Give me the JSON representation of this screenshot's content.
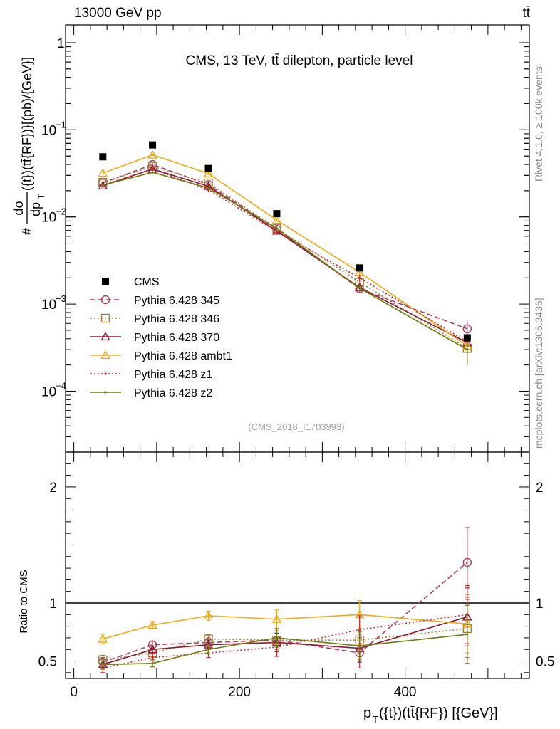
{
  "header": {
    "energy_label": "13000 GeV pp",
    "process_label": "tt̄"
  },
  "side_labels": {
    "rivet": "Rivet 4.1.0, ≥ 100k events",
    "mcplots": "mcplots.cern.ch [arXiv:1306.3436]"
  },
  "chart_data": [
    {
      "type": "line",
      "panel": "main",
      "title": "CMS, 13 TeV, tt̄ dilepton, particle level",
      "analysis_tag": "(CMS_2018_I1703993)",
      "ylabel": "#dσ/dp_T({t})(tt̄{RF})}[(pb)/{GeV}]",
      "ylabel_parts": {
        "hash": "#",
        "num": "dσ",
        "den": "dp",
        "den_sub": "T",
        "rest": "({t})(tt̄{RF})}[(pb)/{GeV}]"
      },
      "yscale": "log",
      "ylim": [
        2e-05,
        1.6
      ],
      "xlim": [
        -10,
        550
      ],
      "y_tick_labels": [
        {
          "value": 1,
          "base": "1",
          "exp": ""
        },
        {
          "value": 0.1,
          "base": "10",
          "exp": "−1"
        },
        {
          "value": 0.01,
          "base": "10",
          "exp": "−2"
        },
        {
          "value": 0.001,
          "base": "10",
          "exp": "−3"
        },
        {
          "value": 0.0001,
          "base": "10",
          "exp": "−4"
        }
      ],
      "x": [
        35,
        95,
        162.5,
        245,
        345,
        475
      ],
      "data": {
        "name": "CMS",
        "color": "#000000",
        "values": [
          0.049,
          0.067,
          0.036,
          0.0109,
          0.0026,
          0.00041
        ]
      },
      "series": [
        {
          "name": "Pythia 6.428 345",
          "color": "#b03a5a",
          "values": [
            0.0245,
            0.04,
            0.0235,
            0.0072,
            0.0015,
            0.00052
          ],
          "errors": [
            0.001,
            0.0015,
            0.001,
            0.0004,
            0.00015,
            0.00012
          ]
        },
        {
          "name": "Pythia 6.428 346",
          "color": "#a08040",
          "values": [
            0.025,
            0.038,
            0.0245,
            0.0074,
            0.00178,
            0.00031
          ],
          "errors": [
            0.001,
            0.0015,
            0.001,
            0.0004,
            0.00018,
            0.0001
          ]
        },
        {
          "name": "Pythia 6.428 370",
          "color": "#8b1a2f",
          "values": [
            0.0228,
            0.0355,
            0.0225,
            0.0069,
            0.00155,
            0.00036
          ],
          "errors": [
            0.001,
            0.0015,
            0.001,
            0.0004,
            0.00015,
            0.0001
          ]
        },
        {
          "name": "Pythia 6.428 ambt1",
          "color": "#f0a818",
          "values": [
            0.0318,
            0.0515,
            0.0315,
            0.0092,
            0.00232,
            0.00033
          ],
          "errors": [
            0.001,
            0.0015,
            0.001,
            0.0004,
            0.0002,
            0.0001
          ]
        },
        {
          "name": "Pythia 6.428 z1",
          "color": "#d0202a",
          "values": [
            0.0232,
            0.0355,
            0.0205,
            0.0068,
            0.002,
            0.00037
          ],
          "errors": [
            0.001,
            0.0015,
            0.001,
            0.0004,
            0.00018,
            0.0001
          ]
        },
        {
          "name": "Pythia 6.428 z2",
          "color": "#6e7a10",
          "values": [
            0.0232,
            0.0325,
            0.0215,
            0.0074,
            0.00152,
            0.0003
          ],
          "errors": [
            0.001,
            0.0015,
            0.001,
            0.0004,
            0.00015,
            0.0001
          ]
        }
      ]
    },
    {
      "type": "line",
      "panel": "ratio",
      "ylabel": "Ratio to CMS",
      "xlabel": "p_T({t})(tt̄{RF}) [{GeV}]",
      "xlabel_parts": {
        "p": "p",
        "sub": "T",
        "rest": "({t})(tt̄{RF}) [{GeV}]"
      },
      "ylim": [
        0.35,
        2.3
      ],
      "xlim": [
        -10,
        550
      ],
      "y_ticks": [
        0.5,
        1,
        2
      ],
      "y_tick_labels": [
        "0.5",
        "1",
        "2"
      ],
      "x_ticks": [
        0,
        200,
        400
      ],
      "x_tick_labels": [
        "0",
        "200",
        "400"
      ],
      "reference": 1,
      "x": [
        35,
        95,
        162.5,
        245,
        345,
        475
      ],
      "series": [
        {
          "name": "Pythia 6.428 345",
          "color": "#b03a5a",
          "values": [
            0.49,
            0.64,
            0.66,
            0.68,
            0.57,
            1.35
          ],
          "errors": [
            0.04,
            0.03,
            0.04,
            0.08,
            0.13,
            0.3
          ]
        },
        {
          "name": "Pythia 6.428 346",
          "color": "#a08040",
          "values": [
            0.51,
            0.57,
            0.69,
            0.68,
            0.68,
            0.78
          ],
          "errors": [
            0.04,
            0.03,
            0.04,
            0.08,
            0.12,
            0.25
          ]
        },
        {
          "name": "Pythia 6.428 370",
          "color": "#8b1a2f",
          "values": [
            0.47,
            0.6,
            0.64,
            0.66,
            0.61,
            0.88
          ],
          "errors": [
            0.04,
            0.03,
            0.04,
            0.08,
            0.12,
            0.25
          ]
        },
        {
          "name": "Pythia 6.428 ambt1",
          "color": "#f0a818",
          "values": [
            0.69,
            0.81,
            0.89,
            0.86,
            0.9,
            0.82
          ],
          "errors": [
            0.04,
            0.03,
            0.04,
            0.08,
            0.12,
            0.25
          ]
        },
        {
          "name": "Pythia 6.428 z1",
          "color": "#d0202a",
          "values": [
            0.44,
            0.53,
            0.57,
            0.62,
            0.77,
            0.9
          ],
          "errors": [
            0.04,
            0.03,
            0.04,
            0.08,
            0.12,
            0.25
          ]
        },
        {
          "name": "Pythia 6.428 z2",
          "color": "#6e7a10",
          "values": [
            0.47,
            0.48,
            0.6,
            0.7,
            0.63,
            0.73
          ],
          "errors": [
            0.04,
            0.03,
            0.04,
            0.08,
            0.12,
            0.25
          ]
        }
      ]
    }
  ]
}
